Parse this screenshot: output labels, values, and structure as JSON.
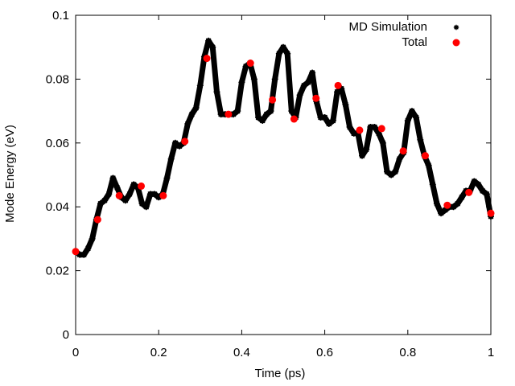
{
  "chart_data": {
    "type": "scatter",
    "xlabel": "Time (ps)",
    "ylabel": "Mode Energy (eV)",
    "xlim": [
      0,
      1
    ],
    "ylim": [
      0,
      0.1
    ],
    "x_ticks": [
      "0",
      "0.2",
      "0.4",
      "0.6",
      "0.8",
      "1"
    ],
    "y_ticks": [
      "0",
      "0.02",
      "0.04",
      "0.06",
      "0.08",
      "0.1"
    ],
    "grid": false,
    "legend_position": "top-right",
    "series": [
      {
        "name": "MD Simulation",
        "style": "dense small black markers",
        "color": "#000000",
        "x": [
          0.0,
          0.01,
          0.02,
          0.03,
          0.04,
          0.05,
          0.06,
          0.07,
          0.08,
          0.09,
          0.1,
          0.11,
          0.12,
          0.13,
          0.14,
          0.15,
          0.16,
          0.17,
          0.18,
          0.19,
          0.2,
          0.21,
          0.22,
          0.23,
          0.24,
          0.25,
          0.26,
          0.27,
          0.28,
          0.29,
          0.3,
          0.31,
          0.32,
          0.33,
          0.34,
          0.35,
          0.36,
          0.37,
          0.38,
          0.39,
          0.4,
          0.41,
          0.42,
          0.43,
          0.44,
          0.45,
          0.46,
          0.47,
          0.48,
          0.49,
          0.5,
          0.51,
          0.52,
          0.53,
          0.54,
          0.55,
          0.56,
          0.57,
          0.58,
          0.59,
          0.6,
          0.61,
          0.62,
          0.63,
          0.64,
          0.65,
          0.66,
          0.67,
          0.68,
          0.69,
          0.7,
          0.71,
          0.72,
          0.73,
          0.74,
          0.75,
          0.76,
          0.77,
          0.78,
          0.79,
          0.8,
          0.81,
          0.82,
          0.83,
          0.84,
          0.85,
          0.86,
          0.87,
          0.88,
          0.89,
          0.9,
          0.91,
          0.92,
          0.93,
          0.94,
          0.95,
          0.96,
          0.97,
          0.98,
          0.99,
          1.0
        ],
        "y": [
          0.026,
          0.025,
          0.025,
          0.027,
          0.03,
          0.036,
          0.041,
          0.042,
          0.044,
          0.049,
          0.046,
          0.043,
          0.042,
          0.044,
          0.047,
          0.046,
          0.041,
          0.04,
          0.044,
          0.044,
          0.043,
          0.044,
          0.049,
          0.055,
          0.06,
          0.059,
          0.06,
          0.066,
          0.069,
          0.071,
          0.078,
          0.087,
          0.092,
          0.09,
          0.076,
          0.069,
          0.069,
          0.069,
          0.069,
          0.07,
          0.079,
          0.084,
          0.085,
          0.08,
          0.068,
          0.067,
          0.069,
          0.07,
          0.08,
          0.088,
          0.09,
          0.088,
          0.07,
          0.068,
          0.075,
          0.078,
          0.079,
          0.082,
          0.073,
          0.068,
          0.068,
          0.066,
          0.067,
          0.076,
          0.077,
          0.072,
          0.065,
          0.063,
          0.063,
          0.056,
          0.058,
          0.065,
          0.065,
          0.063,
          0.06,
          0.051,
          0.05,
          0.051,
          0.055,
          0.057,
          0.067,
          0.07,
          0.068,
          0.061,
          0.056,
          0.053,
          0.047,
          0.041,
          0.038,
          0.039,
          0.04,
          0.04,
          0.041,
          0.043,
          0.045,
          0.045,
          0.048,
          0.047,
          0.045,
          0.044,
          0.037
        ]
      },
      {
        "name": "Total",
        "style": "large red dots",
        "color": "#ff0000",
        "x": [
          0.0,
          0.053,
          0.105,
          0.158,
          0.211,
          0.263,
          0.316,
          0.368,
          0.421,
          0.474,
          0.526,
          0.579,
          0.632,
          0.684,
          0.737,
          0.789,
          0.842,
          0.895,
          0.947,
          1.0
        ],
        "y": [
          0.026,
          0.036,
          0.0435,
          0.0465,
          0.0435,
          0.0605,
          0.0865,
          0.069,
          0.085,
          0.0735,
          0.0675,
          0.074,
          0.078,
          0.064,
          0.0645,
          0.0575,
          0.056,
          0.0405,
          0.0445,
          0.038
        ]
      }
    ]
  }
}
